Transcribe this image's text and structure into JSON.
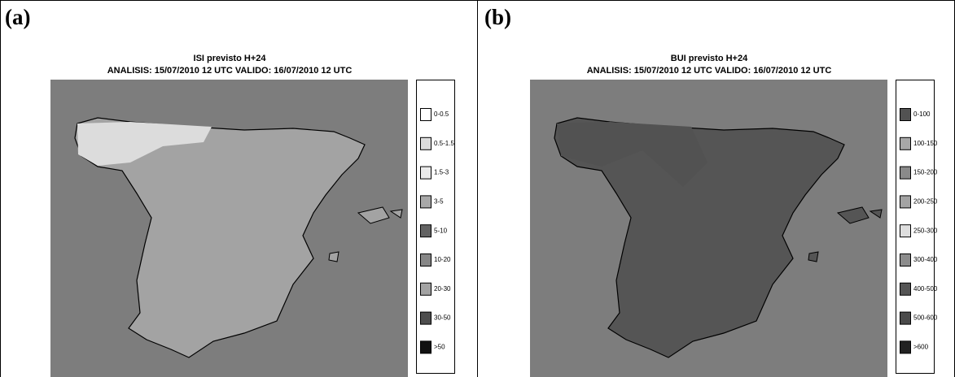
{
  "panels": [
    {
      "label": "(a)",
      "title": "ISI previsto H+24",
      "subtitle": "ANALISIS: 15/07/2010 12 UTC  VALIDO: 16/07/2010 12 UTC",
      "legend": [
        {
          "label": "0-0.5",
          "color": "#ffffff"
        },
        {
          "label": "0.5-1.5",
          "color": "#dcdcdc"
        },
        {
          "label": "1.5-3",
          "color": "#ebebeb"
        },
        {
          "label": "3-5",
          "color": "#a8a8a8"
        },
        {
          "label": "5-10",
          "color": "#636363"
        },
        {
          "label": "10-20",
          "color": "#878787"
        },
        {
          "label": "20-30",
          "color": "#a3a3a3"
        },
        {
          "label": "30-50",
          "color": "#4e4e4e"
        },
        {
          "label": ">50",
          "color": "#111111"
        }
      ]
    },
    {
      "label": "(b)",
      "title": "BUI previsto H+24",
      "subtitle": "ANALISIS: 15/07/2010 12 UTC  VALIDO: 16/07/2010 12 UTC",
      "legend": [
        {
          "label": "0-100",
          "color": "#525252"
        },
        {
          "label": "100-150",
          "color": "#a8a8a8"
        },
        {
          "label": "150-200",
          "color": "#8a8a8a"
        },
        {
          "label": "200-250",
          "color": "#a3a3a3"
        },
        {
          "label": "250-300",
          "color": "#dedede"
        },
        {
          "label": "300-400",
          "color": "#8c8c8c"
        },
        {
          "label": "400-500",
          "color": "#555555"
        },
        {
          "label": "500-600",
          "color": "#4a4a4a"
        },
        {
          "label": ">600",
          "color": "#222222"
        }
      ]
    }
  ]
}
